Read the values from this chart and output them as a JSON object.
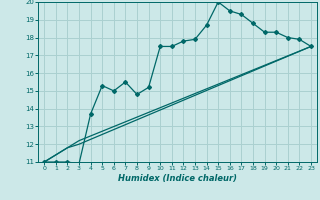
{
  "xlabel": "Humidex (Indice chaleur)",
  "bg_color": "#cce8e8",
  "grid_color": "#aad0d0",
  "line_color": "#006868",
  "xlim": [
    -0.5,
    23.5
  ],
  "ylim": [
    11,
    20
  ],
  "xticks": [
    0,
    1,
    2,
    3,
    4,
    5,
    6,
    7,
    8,
    9,
    10,
    11,
    12,
    13,
    14,
    15,
    16,
    17,
    18,
    19,
    20,
    21,
    22,
    23
  ],
  "yticks": [
    11,
    12,
    13,
    14,
    15,
    16,
    17,
    18,
    19,
    20
  ],
  "line1_x": [
    0,
    1,
    2,
    3,
    4,
    5,
    6,
    7,
    8,
    9,
    10,
    11,
    12,
    13,
    14,
    15,
    16,
    17,
    18,
    19,
    20,
    21,
    22,
    23
  ],
  "line1_y": [
    11.0,
    11.0,
    11.0,
    10.9,
    13.7,
    15.3,
    15.0,
    15.5,
    14.8,
    15.2,
    17.5,
    17.5,
    17.8,
    17.9,
    18.7,
    20.0,
    19.5,
    19.3,
    18.8,
    18.3,
    18.3,
    18.0,
    17.9,
    17.5
  ],
  "line2_x": [
    0,
    2,
    3,
    23
  ],
  "line2_y": [
    11.0,
    11.8,
    12.0,
    17.5
  ],
  "line3_x": [
    0,
    3,
    23
  ],
  "line3_y": [
    11.0,
    12.2,
    17.5
  ],
  "markersize": 2.0
}
